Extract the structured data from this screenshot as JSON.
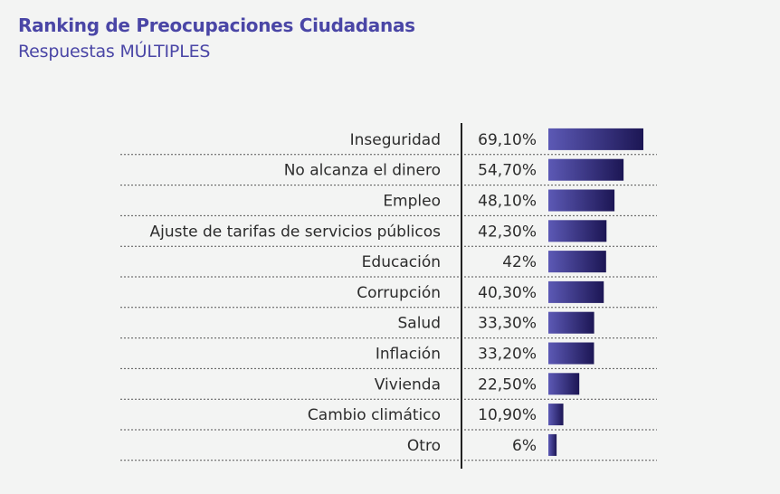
{
  "header": {
    "title": "Ranking de Preocupaciones Ciudadanas",
    "subtitle": "Respuestas MÚLTIPLES"
  },
  "chart_data": {
    "type": "bar",
    "orientation": "horizontal",
    "categories": [
      "Inseguridad",
      "No alcanza el dinero",
      "Empleo",
      "Ajuste de tarifas de servicios públicos",
      "Educación",
      "Corrupción",
      "Salud",
      "Inflación",
      "Vivienda",
      "Cambio climático",
      "Otro"
    ],
    "values": [
      69.1,
      54.7,
      48.1,
      42.3,
      42,
      40.3,
      33.3,
      33.2,
      22.5,
      10.9,
      6
    ],
    "value_labels": [
      "69,10%",
      "54,70%",
      "48,10%",
      "42,30%",
      "42%",
      "40,30%",
      "33,30%",
      "33,20%",
      "22,50%",
      "10,90%",
      "6%"
    ],
    "unit": "%",
    "xlim": [
      0,
      69.1
    ],
    "grid": false,
    "row_separators": "dotted",
    "colors": {
      "bar_start": "#5c59b5",
      "bar_end": "#1c1654",
      "text": "#2c2c2c",
      "divider": "#222222"
    }
  }
}
